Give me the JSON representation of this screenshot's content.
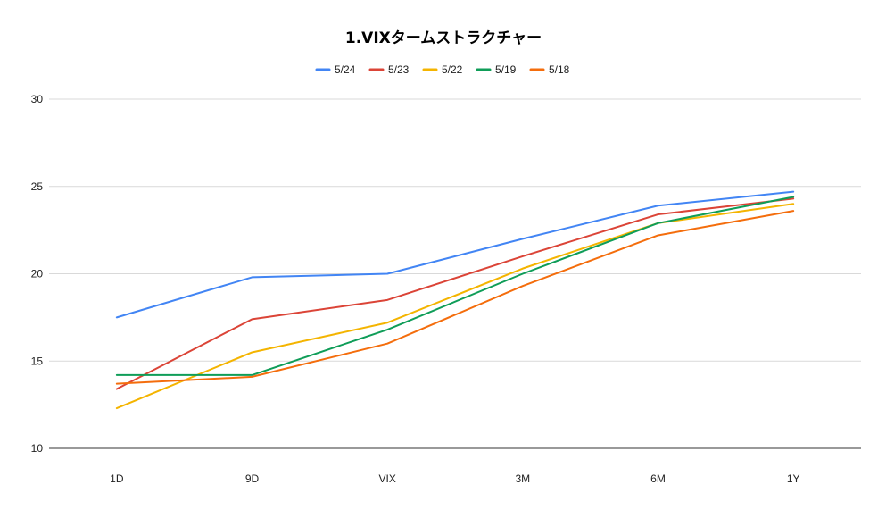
{
  "chart_data": {
    "type": "line",
    "title": "1.VIXタームストラクチャー",
    "xlabel": "",
    "ylabel": "",
    "categories": [
      "1D",
      "9D",
      "VIX",
      "3M",
      "6M",
      "1Y"
    ],
    "ylim": [
      10,
      30
    ],
    "yticks": [
      10,
      15,
      20,
      25,
      30
    ],
    "grid": true,
    "legend_position": "top-center",
    "series": [
      {
        "name": "5/24",
        "color": "#4285f4",
        "values": [
          17.5,
          19.8,
          20.0,
          22.0,
          23.9,
          24.7
        ]
      },
      {
        "name": "5/23",
        "color": "#db4437",
        "values": [
          13.4,
          17.4,
          18.5,
          21.0,
          23.4,
          24.3
        ]
      },
      {
        "name": "5/22",
        "color": "#f4b400",
        "values": [
          12.3,
          15.5,
          17.2,
          20.3,
          22.9,
          24.0
        ]
      },
      {
        "name": "5/19",
        "color": "#0f9d58",
        "values": [
          14.2,
          14.2,
          16.8,
          20.0,
          22.9,
          24.4
        ]
      },
      {
        "name": "5/18",
        "color": "#f46d0c",
        "values": [
          13.7,
          14.1,
          16.0,
          19.3,
          22.2,
          23.6
        ]
      }
    ]
  }
}
